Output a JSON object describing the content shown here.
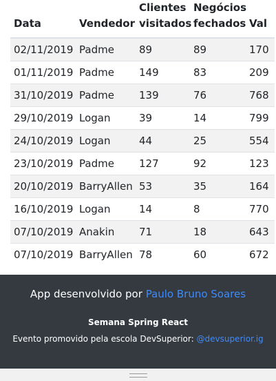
{
  "table": {
    "headers": {
      "date": "Data",
      "seller": "Vendedor",
      "visited_1": "Clientes",
      "visited_2": "visitados",
      "deals_1": "Negócios",
      "deals_2": "fechados",
      "amount": "Val"
    },
    "rows": [
      {
        "date": "02/11/2019",
        "seller": "Padme",
        "visited": "89",
        "deals": "89",
        "amount": "170"
      },
      {
        "date": "01/11/2019",
        "seller": "Padme",
        "visited": "149",
        "deals": "83",
        "amount": "209"
      },
      {
        "date": "31/10/2019",
        "seller": "Padme",
        "visited": "139",
        "deals": "76",
        "amount": "768"
      },
      {
        "date": "29/10/2019",
        "seller": "Logan",
        "visited": "39",
        "deals": "14",
        "amount": "799"
      },
      {
        "date": "24/10/2019",
        "seller": "Logan",
        "visited": "44",
        "deals": "25",
        "amount": "554"
      },
      {
        "date": "23/10/2019",
        "seller": "Padme",
        "visited": "127",
        "deals": "92",
        "amount": "123"
      },
      {
        "date": "20/10/2019",
        "seller": "BarryAllen",
        "visited": "53",
        "deals": "35",
        "amount": "164"
      },
      {
        "date": "16/10/2019",
        "seller": "Logan",
        "visited": "14",
        "deals": "8",
        "amount": "770"
      },
      {
        "date": "07/10/2019",
        "seller": "Anakin",
        "visited": "71",
        "deals": "18",
        "amount": "643"
      },
      {
        "date": "07/10/2019",
        "seller": "BarryAllen",
        "visited": "78",
        "deals": "60",
        "amount": "672"
      }
    ]
  },
  "footer": {
    "credit_prefix": "App desenvolvido por",
    "author_link": "Paulo Bruno Soares",
    "event_title": "Semana Spring React",
    "promo_prefix": "Evento promovido pela escola DevSuperior:",
    "instagram_link": "@devsuperior.ig"
  },
  "colors": {
    "footer_bg": "#343a40",
    "link": "#3d8bfd",
    "stripe": "#f2f2f2"
  }
}
